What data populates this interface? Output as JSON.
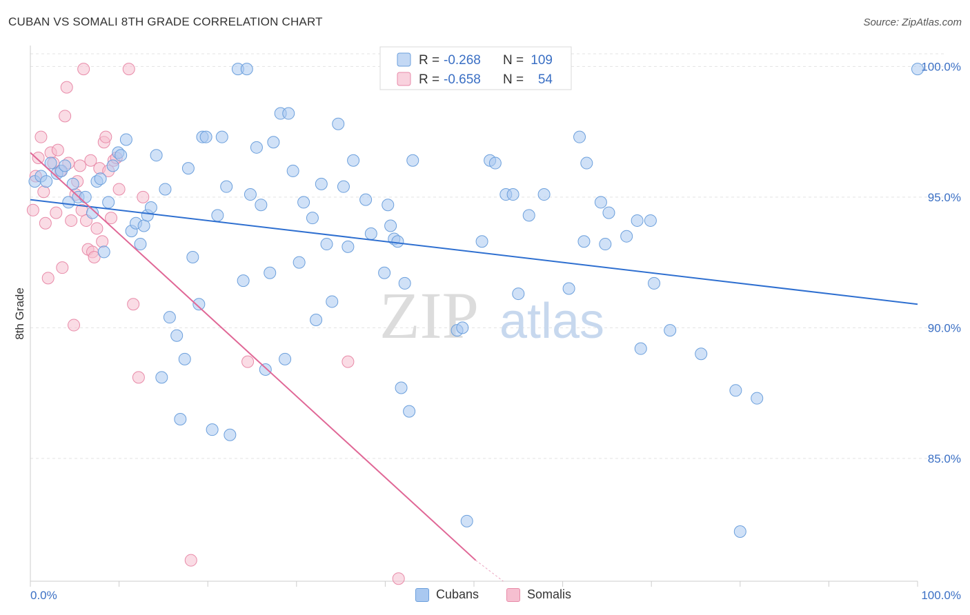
{
  "title": "CUBAN VS SOMALI 8TH GRADE CORRELATION CHART",
  "source": "Source: ZipAtlas.com",
  "watermark": {
    "part1": "ZIP",
    "part2": "atlas"
  },
  "colors": {
    "cubans_fill": "#a9c8f0",
    "cubans_stroke": "#6b9fdc",
    "cubans_line": "#2e6fd0",
    "somalis_fill": "#f6bfd0",
    "somalis_stroke": "#e88aa8",
    "somalis_line": "#e06796",
    "tick_label": "#3a6fc4",
    "grid": "#e3e3e3"
  },
  "legend": {
    "items": [
      {
        "r_label": "R =",
        "r_value": "-0.268",
        "n_label": "N =",
        "n_value": "109"
      },
      {
        "r_label": "R =",
        "r_value": "-0.658",
        "n_label": "N =",
        "n_value": "54"
      }
    ]
  },
  "bottom_legend": [
    "Cubans",
    "Somalis"
  ],
  "chart_data": {
    "type": "scatter",
    "ylabel": "8th Grade",
    "xlim": [
      0,
      100
    ],
    "ylim": [
      80.3,
      100.8
    ],
    "x_tick_labels": [
      "0.0%",
      "100.0%"
    ],
    "y_tick_labels": [
      "100.0%",
      "95.0%",
      "90.0%",
      "85.0%"
    ],
    "y_ticks": [
      100,
      95,
      90,
      85
    ],
    "grid": true,
    "legend_position": "top-center",
    "series": [
      {
        "name": "Cubans",
        "r": -0.268,
        "n": 109,
        "trend": {
          "x": [
            0,
            100
          ],
          "y": [
            94.9,
            90.9
          ]
        },
        "points": [
          [
            0.5,
            95.6
          ],
          [
            1.2,
            95.8
          ],
          [
            1.8,
            95.6
          ],
          [
            2.3,
            96.3
          ],
          [
            3.0,
            95.9
          ],
          [
            3.5,
            96.0
          ],
          [
            3.9,
            96.2
          ],
          [
            4.3,
            94.8
          ],
          [
            4.8,
            95.5
          ],
          [
            5.4,
            95.0
          ],
          [
            6.2,
            95.0
          ],
          [
            7.0,
            94.4
          ],
          [
            7.5,
            95.6
          ],
          [
            7.9,
            95.7
          ],
          [
            8.3,
            92.9
          ],
          [
            8.8,
            94.8
          ],
          [
            9.3,
            96.2
          ],
          [
            9.9,
            96.7
          ],
          [
            10.2,
            96.6
          ],
          [
            10.8,
            97.2
          ],
          [
            11.4,
            93.7
          ],
          [
            11.9,
            94.0
          ],
          [
            12.4,
            93.2
          ],
          [
            12.8,
            93.9
          ],
          [
            13.2,
            94.3
          ],
          [
            13.6,
            94.6
          ],
          [
            14.2,
            96.6
          ],
          [
            14.8,
            88.1
          ],
          [
            15.2,
            95.3
          ],
          [
            15.7,
            90.4
          ],
          [
            16.5,
            89.7
          ],
          [
            16.9,
            86.5
          ],
          [
            17.4,
            88.8
          ],
          [
            17.8,
            96.1
          ],
          [
            18.3,
            92.7
          ],
          [
            19.0,
            90.9
          ],
          [
            19.4,
            97.3
          ],
          [
            19.8,
            97.3
          ],
          [
            20.5,
            86.1
          ],
          [
            21.1,
            94.3
          ],
          [
            21.6,
            97.3
          ],
          [
            22.1,
            95.4
          ],
          [
            22.5,
            85.9
          ],
          [
            23.4,
            99.9
          ],
          [
            24.0,
            91.8
          ],
          [
            24.4,
            99.9
          ],
          [
            24.8,
            95.1
          ],
          [
            25.5,
            96.9
          ],
          [
            26.0,
            94.7
          ],
          [
            26.5,
            88.4
          ],
          [
            27.0,
            92.1
          ],
          [
            27.4,
            97.1
          ],
          [
            28.2,
            98.2
          ],
          [
            28.7,
            88.8
          ],
          [
            29.1,
            98.2
          ],
          [
            29.6,
            96.0
          ],
          [
            30.3,
            92.5
          ],
          [
            30.8,
            94.8
          ],
          [
            31.8,
            94.2
          ],
          [
            32.2,
            90.3
          ],
          [
            32.8,
            95.5
          ],
          [
            33.4,
            93.2
          ],
          [
            34.0,
            91.0
          ],
          [
            34.7,
            97.8
          ],
          [
            35.3,
            95.4
          ],
          [
            35.8,
            93.1
          ],
          [
            36.4,
            96.4
          ],
          [
            37.8,
            94.9
          ],
          [
            38.4,
            93.6
          ],
          [
            39.9,
            92.1
          ],
          [
            40.3,
            94.7
          ],
          [
            40.6,
            93.9
          ],
          [
            41.0,
            93.4
          ],
          [
            41.4,
            93.3
          ],
          [
            41.8,
            87.7
          ],
          [
            42.2,
            91.7
          ],
          [
            42.7,
            86.8
          ],
          [
            43.1,
            96.4
          ],
          [
            48.1,
            89.9
          ],
          [
            48.7,
            90.0
          ],
          [
            49.2,
            82.6
          ],
          [
            50.9,
            93.3
          ],
          [
            51.8,
            96.4
          ],
          [
            52.4,
            96.3
          ],
          [
            53.6,
            95.1
          ],
          [
            54.4,
            95.1
          ],
          [
            55.0,
            91.3
          ],
          [
            56.2,
            94.3
          ],
          [
            57.9,
            95.1
          ],
          [
            60.7,
            91.5
          ],
          [
            61.9,
            97.3
          ],
          [
            62.4,
            93.3
          ],
          [
            62.7,
            96.3
          ],
          [
            64.3,
            94.8
          ],
          [
            64.8,
            93.2
          ],
          [
            65.2,
            94.4
          ],
          [
            67.2,
            93.5
          ],
          [
            68.4,
            94.1
          ],
          [
            68.8,
            89.2
          ],
          [
            69.9,
            94.1
          ],
          [
            70.3,
            91.7
          ],
          [
            72.1,
            89.9
          ],
          [
            75.6,
            89.0
          ],
          [
            79.5,
            87.6
          ],
          [
            80.0,
            82.2
          ],
          [
            81.9,
            87.3
          ],
          [
            100.0,
            99.9
          ]
        ]
      },
      {
        "name": "Somalis",
        "r": -0.658,
        "n": 54,
        "trend": {
          "x": [
            0,
            50.2
          ],
          "y": [
            96.7,
            81.1
          ]
        },
        "trend_dashed_extension": {
          "x": [
            50.2,
            53.3
          ],
          "y": [
            81.1,
            80.3
          ]
        },
        "points": [
          [
            0.3,
            94.5
          ],
          [
            0.6,
            95.8
          ],
          [
            0.9,
            96.5
          ],
          [
            1.2,
            97.3
          ],
          [
            1.5,
            95.2
          ],
          [
            1.7,
            94.0
          ],
          [
            2.0,
            91.9
          ],
          [
            2.3,
            96.7
          ],
          [
            2.6,
            96.3
          ],
          [
            2.9,
            94.4
          ],
          [
            3.1,
            96.8
          ],
          [
            3.4,
            96.0
          ],
          [
            3.6,
            92.3
          ],
          [
            3.9,
            98.1
          ],
          [
            4.1,
            99.2
          ],
          [
            4.3,
            96.3
          ],
          [
            4.6,
            94.1
          ],
          [
            4.9,
            90.1
          ],
          [
            5.1,
            95.1
          ],
          [
            5.3,
            95.6
          ],
          [
            5.6,
            96.2
          ],
          [
            5.8,
            94.5
          ],
          [
            6.0,
            99.9
          ],
          [
            6.3,
            94.1
          ],
          [
            6.5,
            93.0
          ],
          [
            6.8,
            96.4
          ],
          [
            7.0,
            92.9
          ],
          [
            7.2,
            92.7
          ],
          [
            7.5,
            93.8
          ],
          [
            7.8,
            96.1
          ],
          [
            8.1,
            93.3
          ],
          [
            8.3,
            97.1
          ],
          [
            8.5,
            97.3
          ],
          [
            8.8,
            96.0
          ],
          [
            9.1,
            94.2
          ],
          [
            9.4,
            96.4
          ],
          [
            9.7,
            96.5
          ],
          [
            10.0,
            95.3
          ],
          [
            11.1,
            99.9
          ],
          [
            11.6,
            90.9
          ],
          [
            12.2,
            88.1
          ],
          [
            12.7,
            95.0
          ],
          [
            18.1,
            81.1
          ],
          [
            24.5,
            88.7
          ],
          [
            35.8,
            88.7
          ],
          [
            41.5,
            80.4
          ]
        ]
      }
    ]
  }
}
